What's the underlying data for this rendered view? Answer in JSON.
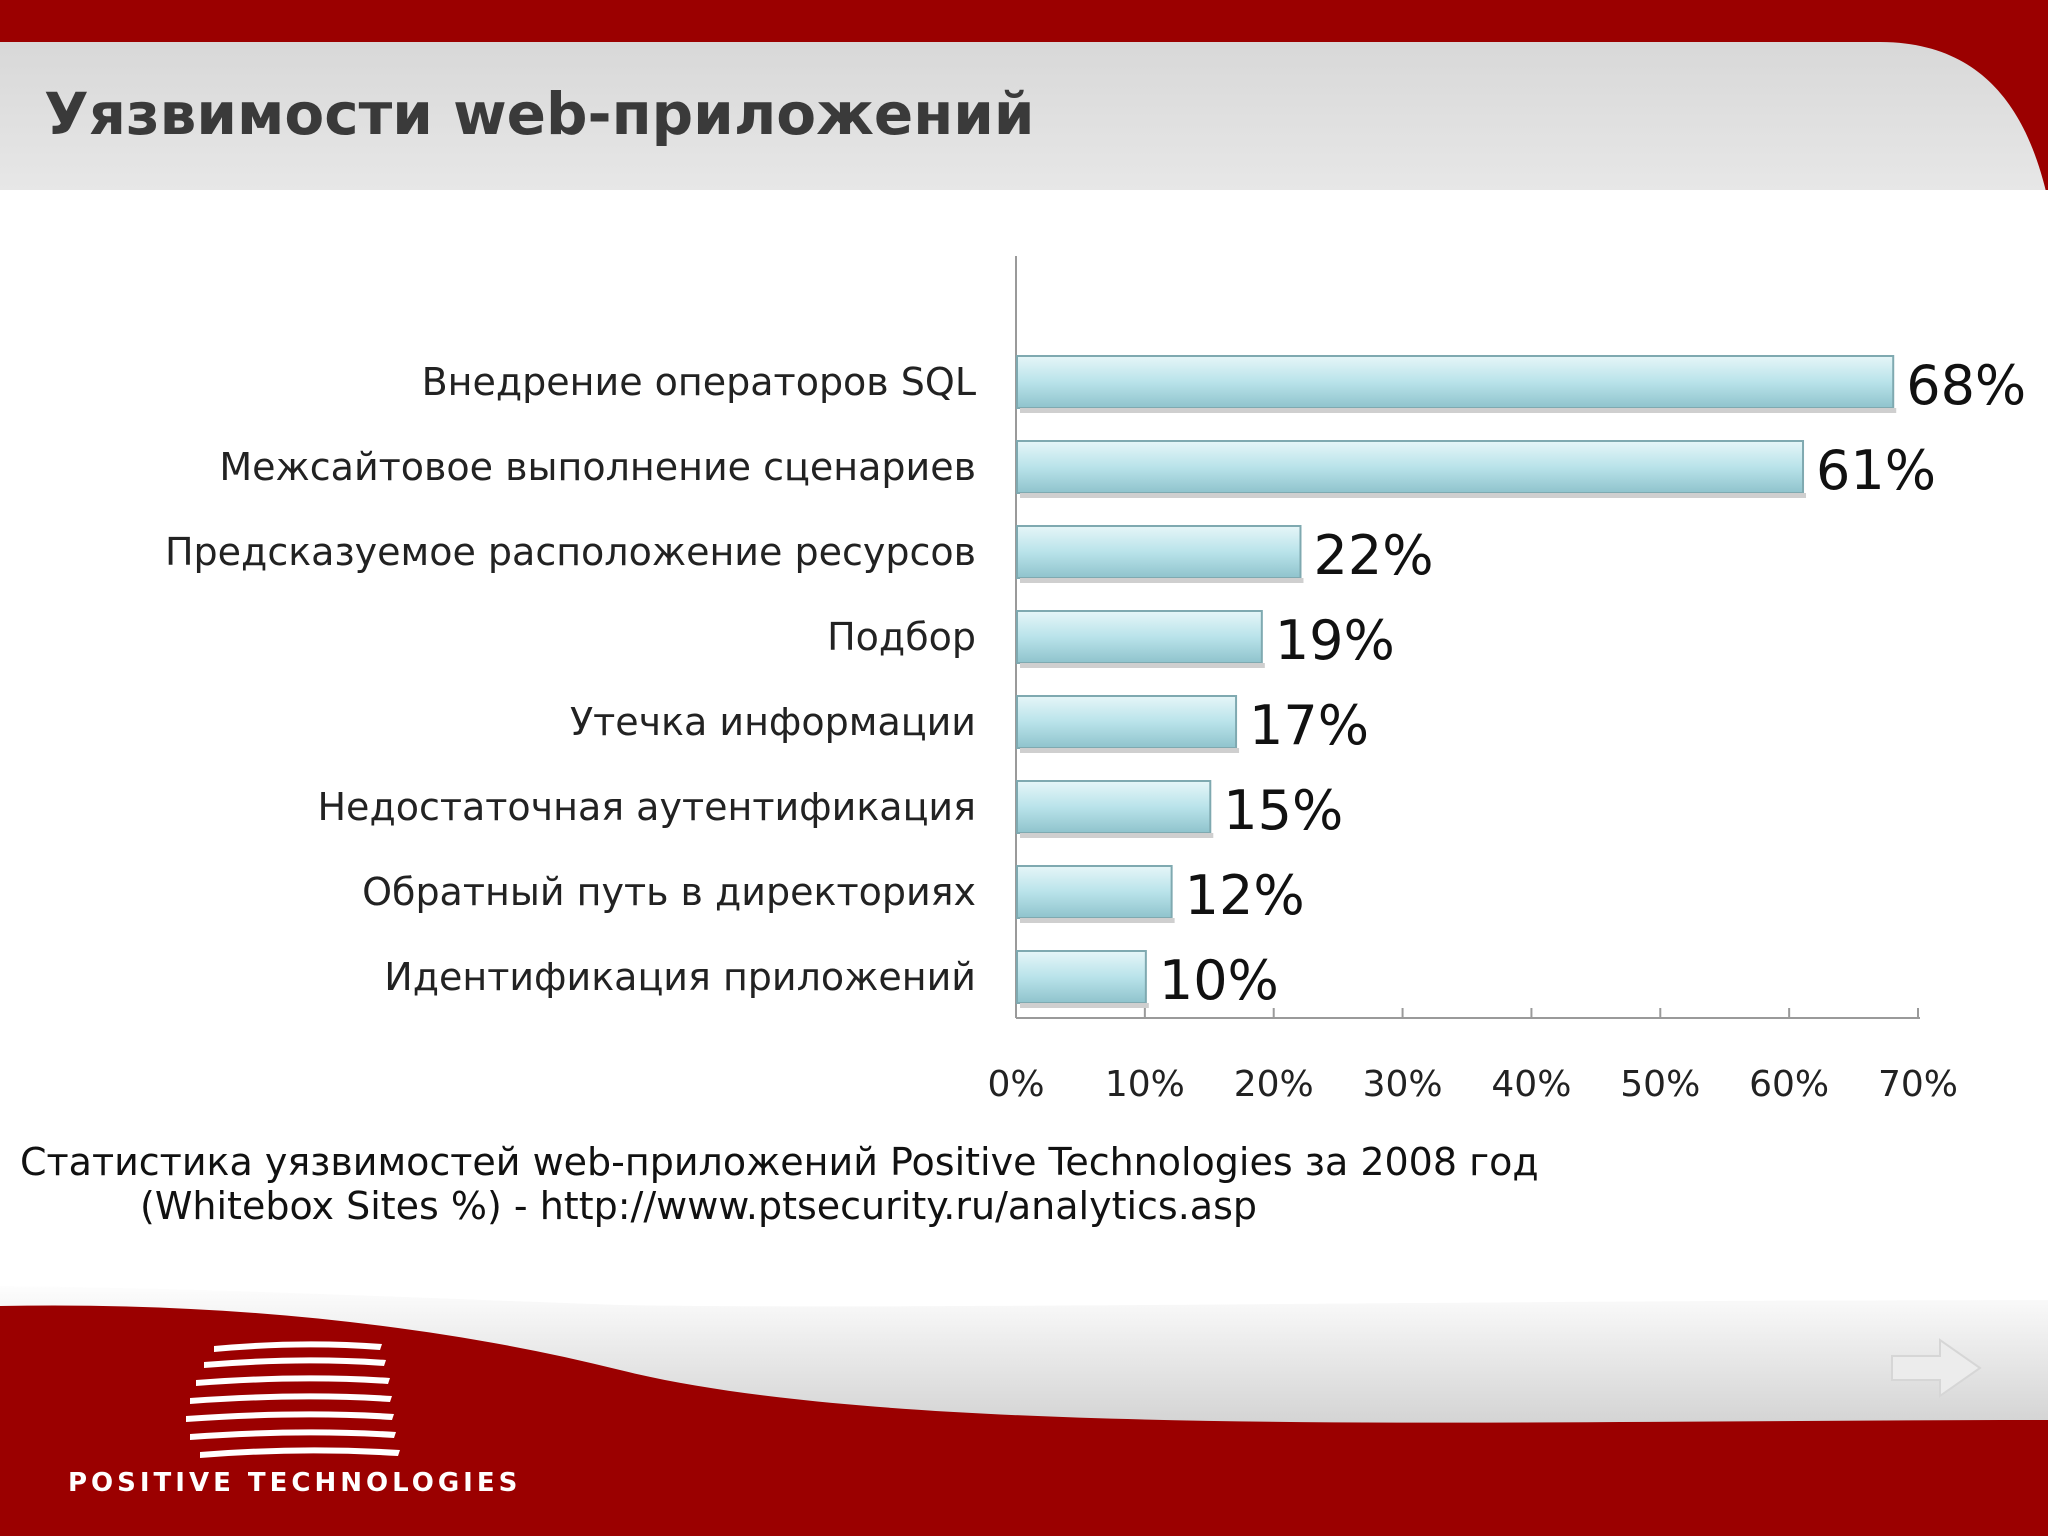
{
  "slide": {
    "title": "Уязвимости web-приложений",
    "caption_line1": "Статистика уязвимостей web-приложений Positive Technologies за 2008 год",
    "caption_line2": "(Whitebox Sites %) - http://www.ptsecurity.ru/analytics.asp",
    "logo_text": "POSITIVE TECHNOLOGIES",
    "next_icon": "arrow-right-icon"
  },
  "colors": {
    "brand_red": "#9b0000",
    "header_gray": "#e4e4e4",
    "bar_fill": "#b9e3ea",
    "bar_edge": "#8fb8bf"
  },
  "chart_data": {
    "type": "bar",
    "orientation": "horizontal",
    "categories": [
      "Внедрение операторов SQL",
      "Межсайтовое выполнение сценариев",
      "Предсказуемое расположение ресурсов",
      "Подбор",
      "Утечка информации",
      "Недостаточная аутентификация",
      "Обратный путь в директориях",
      "Идентификация приложений"
    ],
    "values": [
      68,
      61,
      22,
      19,
      17,
      15,
      12,
      10
    ],
    "value_labels": [
      "68%",
      "61%",
      "22%",
      "19%",
      "17%",
      "15%",
      "12%",
      "10%"
    ],
    "xlim": [
      0,
      70
    ],
    "x_ticks": [
      0,
      10,
      20,
      30,
      40,
      50,
      60,
      70
    ],
    "x_tick_labels": [
      "0%",
      "10%",
      "20%",
      "30%",
      "40%",
      "50%",
      "60%",
      "70%"
    ],
    "grid": false,
    "legend": "none"
  }
}
